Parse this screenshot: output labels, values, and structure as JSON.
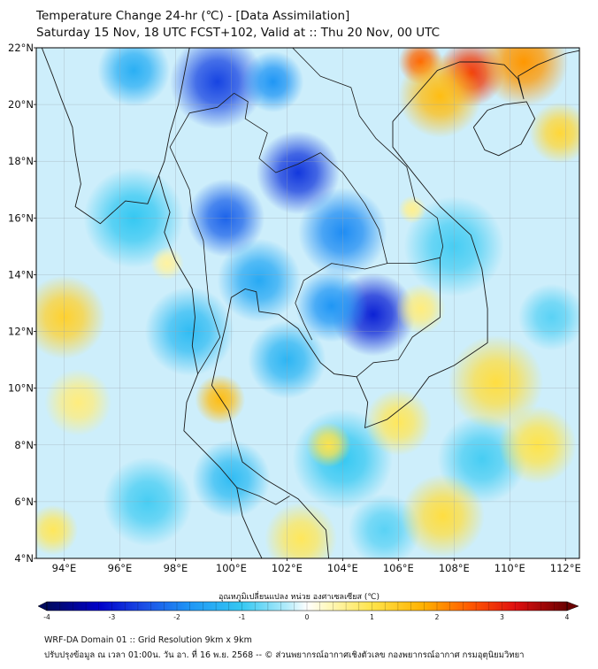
{
  "header": {
    "title": "Temperature Change 24-hr (℃) - [Data Assimilation]",
    "subtitle": "Saturday 15 Nov, 18 UTC FCST+102, Valid at :: Thu 20 Nov, 00 UTC"
  },
  "map": {
    "lat_range": [
      4,
      22
    ],
    "lon_range": [
      93,
      112.5
    ],
    "lat_ticks": [
      "4°N",
      "6°N",
      "8°N",
      "10°N",
      "12°N",
      "14°N",
      "16°N",
      "18°N",
      "20°N",
      "22°N"
    ],
    "lat_tick_values": [
      4,
      6,
      8,
      10,
      12,
      14,
      16,
      18,
      20,
      22
    ],
    "lon_ticks": [
      "94°E",
      "96°E",
      "98°E",
      "100°E",
      "102°E",
      "104°E",
      "106°E",
      "108°E",
      "110°E",
      "112°E"
    ],
    "lon_tick_values": [
      94,
      96,
      98,
      100,
      102,
      104,
      106,
      108,
      110,
      112
    ],
    "background_color": "#cdeefb",
    "anomalies": [
      {
        "lon": 99.5,
        "lat": 20.8,
        "value": -2.6,
        "radius_deg": 1.7
      },
      {
        "lon": 101.5,
        "lat": 20.8,
        "value": -1.8,
        "radius_deg": 1.1
      },
      {
        "lon": 96.5,
        "lat": 21.2,
        "value": -1.4,
        "radius_deg": 1.3
      },
      {
        "lon": 102.4,
        "lat": 17.6,
        "value": -2.7,
        "radius_deg": 1.5
      },
      {
        "lon": 99.8,
        "lat": 16.0,
        "value": -2.3,
        "radius_deg": 1.4
      },
      {
        "lon": 104.0,
        "lat": 15.5,
        "value": -1.9,
        "radius_deg": 1.6
      },
      {
        "lon": 105.1,
        "lat": 12.6,
        "value": -2.9,
        "radius_deg": 1.5
      },
      {
        "lon": 103.6,
        "lat": 12.9,
        "value": -1.8,
        "radius_deg": 1.3
      },
      {
        "lon": 101.0,
        "lat": 13.8,
        "value": -1.5,
        "radius_deg": 1.5
      },
      {
        "lon": 102.0,
        "lat": 11.0,
        "value": -1.3,
        "radius_deg": 1.4
      },
      {
        "lon": 98.5,
        "lat": 12.0,
        "value": -1.2,
        "radius_deg": 1.6
      },
      {
        "lon": 96.5,
        "lat": 16.0,
        "value": -1.0,
        "radius_deg": 1.8
      },
      {
        "lon": 100.0,
        "lat": 6.8,
        "value": -1.2,
        "radius_deg": 1.4
      },
      {
        "lon": 104.0,
        "lat": 7.5,
        "value": -1.0,
        "radius_deg": 1.8
      },
      {
        "lon": 97.0,
        "lat": 6.0,
        "value": -0.9,
        "radius_deg": 1.6
      },
      {
        "lon": 108.0,
        "lat": 15.0,
        "value": -0.9,
        "radius_deg": 1.8
      },
      {
        "lon": 111.5,
        "lat": 12.5,
        "value": -0.8,
        "radius_deg": 1.2
      },
      {
        "lon": 109.0,
        "lat": 7.5,
        "value": -0.9,
        "radius_deg": 1.6
      },
      {
        "lon": 105.5,
        "lat": 5.0,
        "value": -0.8,
        "radius_deg": 1.3
      },
      {
        "lon": 108.6,
        "lat": 21.1,
        "value": 2.8,
        "radius_deg": 1.2
      },
      {
        "lon": 106.8,
        "lat": 21.5,
        "value": 2.4,
        "radius_deg": 0.8
      },
      {
        "lon": 110.5,
        "lat": 21.5,
        "value": 2.0,
        "radius_deg": 1.6
      },
      {
        "lon": 107.5,
        "lat": 20.3,
        "value": 1.6,
        "radius_deg": 1.5
      },
      {
        "lon": 111.8,
        "lat": 19.0,
        "value": 1.2,
        "radius_deg": 1.1
      },
      {
        "lon": 94.0,
        "lat": 12.5,
        "value": 1.3,
        "radius_deg": 1.5
      },
      {
        "lon": 99.6,
        "lat": 9.6,
        "value": 1.6,
        "radius_deg": 0.9
      },
      {
        "lon": 103.5,
        "lat": 8.0,
        "value": 1.0,
        "radius_deg": 0.8
      },
      {
        "lon": 106.0,
        "lat": 8.8,
        "value": 0.9,
        "radius_deg": 1.2
      },
      {
        "lon": 109.5,
        "lat": 10.2,
        "value": 1.1,
        "radius_deg": 1.7
      },
      {
        "lon": 111.0,
        "lat": 8.0,
        "value": 1.0,
        "radius_deg": 1.4
      },
      {
        "lon": 107.6,
        "lat": 5.5,
        "value": 1.1,
        "radius_deg": 1.5
      },
      {
        "lon": 102.5,
        "lat": 4.7,
        "value": 0.9,
        "radius_deg": 1.3
      },
      {
        "lon": 93.6,
        "lat": 5.0,
        "value": 0.9,
        "radius_deg": 0.9
      },
      {
        "lon": 106.8,
        "lat": 12.8,
        "value": 0.7,
        "radius_deg": 0.9
      },
      {
        "lon": 106.5,
        "lat": 16.3,
        "value": 0.6,
        "radius_deg": 0.5
      },
      {
        "lon": 97.7,
        "lat": 14.4,
        "value": 0.5,
        "radius_deg": 0.6
      },
      {
        "lon": 94.5,
        "lat": 9.5,
        "value": 0.7,
        "radius_deg": 1.2
      }
    ],
    "coastlines": [
      {
        "name": "indochina-coast",
        "points": [
          [
            98.5,
            22
          ],
          [
            98.3,
            21
          ],
          [
            98.1,
            20
          ],
          [
            97.8,
            19
          ],
          [
            97.6,
            18
          ],
          [
            97.4,
            17.5
          ],
          [
            97.6,
            16.8
          ],
          [
            97.8,
            16.2
          ],
          [
            97.6,
            15.5
          ],
          [
            98.0,
            14.5
          ],
          [
            98.6,
            13.5
          ],
          [
            98.7,
            12.5
          ],
          [
            98.6,
            11.5
          ],
          [
            98.8,
            10.5
          ],
          [
            98.4,
            9.5
          ],
          [
            98.3,
            8.5
          ],
          [
            98.8,
            8.0
          ],
          [
            99.6,
            7.2
          ],
          [
            100.2,
            6.5
          ],
          [
            100.4,
            5.5
          ],
          [
            100.8,
            4.6
          ],
          [
            101.1,
            4.0
          ]
        ]
      },
      {
        "name": "gulf-west-coast",
        "points": [
          [
            103.5,
            4.0
          ],
          [
            103.4,
            5.0
          ],
          [
            102.4,
            6.1
          ],
          [
            101.2,
            6.8
          ],
          [
            100.4,
            7.4
          ],
          [
            100.1,
            8.4
          ],
          [
            99.9,
            9.2
          ],
          [
            99.3,
            10.1
          ],
          [
            99.5,
            11.0
          ],
          [
            99.8,
            12.2
          ],
          [
            100.0,
            13.2
          ],
          [
            100.5,
            13.5
          ],
          [
            100.9,
            13.4
          ],
          [
            101.0,
            12.7
          ],
          [
            101.7,
            12.6
          ],
          [
            102.4,
            12.1
          ],
          [
            102.8,
            11.5
          ],
          [
            103.2,
            10.9
          ],
          [
            103.7,
            10.5
          ],
          [
            104.5,
            10.4
          ],
          [
            104.9,
            9.5
          ],
          [
            104.8,
            8.6
          ],
          [
            105.6,
            8.9
          ],
          [
            106.5,
            9.6
          ],
          [
            107.1,
            10.4
          ],
          [
            108.0,
            10.8
          ],
          [
            109.2,
            11.6
          ],
          [
            109.2,
            12.8
          ],
          [
            109.0,
            14.2
          ],
          [
            108.6,
            15.4
          ],
          [
            107.5,
            16.4
          ],
          [
            106.6,
            17.5
          ],
          [
            105.8,
            18.5
          ],
          [
            105.8,
            19.4
          ],
          [
            106.6,
            20.3
          ],
          [
            107.4,
            21.2
          ],
          [
            108.2,
            21.5
          ],
          [
            109.0,
            21.5
          ],
          [
            109.8,
            21.4
          ],
          [
            110.3,
            20.9
          ],
          [
            110.5,
            20.2
          ],
          [
            110.3,
            21.0
          ],
          [
            111.0,
            21.4
          ],
          [
            112.0,
            21.8
          ],
          [
            112.5,
            21.9
          ]
        ]
      },
      {
        "name": "hainan",
        "points": [
          [
            108.7,
            19.2
          ],
          [
            109.1,
            18.4
          ],
          [
            109.6,
            18.2
          ],
          [
            110.4,
            18.6
          ],
          [
            110.9,
            19.5
          ],
          [
            110.6,
            20.1
          ],
          [
            109.8,
            20.0
          ],
          [
            109.2,
            19.8
          ],
          [
            108.7,
            19.2
          ]
        ]
      },
      {
        "name": "myanmar-west-coast",
        "points": [
          [
            93.2,
            22.0
          ],
          [
            93.6,
            21.0
          ],
          [
            93.9,
            20.2
          ],
          [
            94.3,
            19.2
          ],
          [
            94.4,
            18.3
          ],
          [
            94.6,
            17.2
          ],
          [
            94.4,
            16.4
          ],
          [
            95.3,
            15.8
          ],
          [
            96.2,
            16.6
          ],
          [
            97.0,
            16.5
          ],
          [
            97.4,
            17.5
          ]
        ]
      }
    ],
    "borders": [
      {
        "name": "myanmar-thai-border",
        "points": [
          [
            100.1,
            20.4
          ],
          [
            99.5,
            19.9
          ],
          [
            98.5,
            19.7
          ],
          [
            97.8,
            18.5
          ],
          [
            98.5,
            17.0
          ],
          [
            98.6,
            16.2
          ],
          [
            99.0,
            15.2
          ],
          [
            99.1,
            14.0
          ],
          [
            99.2,
            13.0
          ],
          [
            99.6,
            11.8
          ],
          [
            98.8,
            10.5
          ]
        ]
      },
      {
        "name": "thai-laos-border",
        "points": [
          [
            100.1,
            20.4
          ],
          [
            100.6,
            20.1
          ],
          [
            100.5,
            19.5
          ],
          [
            101.3,
            19.0
          ],
          [
            101.0,
            18.1
          ],
          [
            101.6,
            17.6
          ],
          [
            102.4,
            17.9
          ],
          [
            103.2,
            18.3
          ],
          [
            104.0,
            17.6
          ],
          [
            104.8,
            16.5
          ],
          [
            105.3,
            15.6
          ],
          [
            105.6,
            14.4
          ],
          [
            104.8,
            14.2
          ],
          [
            103.6,
            14.4
          ],
          [
            102.6,
            13.8
          ],
          [
            102.3,
            13.0
          ],
          [
            102.6,
            12.3
          ],
          [
            102.9,
            11.7
          ]
        ]
      },
      {
        "name": "laos-vietnam-border",
        "points": [
          [
            102.2,
            22.0
          ],
          [
            103.2,
            21.0
          ],
          [
            104.3,
            20.6
          ],
          [
            104.6,
            19.6
          ],
          [
            105.2,
            18.8
          ],
          [
            106.3,
            17.8
          ],
          [
            106.6,
            16.6
          ],
          [
            107.4,
            16.0
          ],
          [
            107.6,
            15.0
          ],
          [
            107.5,
            14.6
          ],
          [
            107.5,
            13.5
          ],
          [
            107.5,
            12.5
          ],
          [
            106.5,
            11.8
          ],
          [
            106.0,
            11.0
          ],
          [
            105.1,
            10.9
          ],
          [
            104.5,
            10.4
          ]
        ]
      },
      {
        "name": "cambodia-laos-border",
        "points": [
          [
            105.6,
            14.4
          ],
          [
            106.6,
            14.4
          ],
          [
            107.5,
            14.6
          ]
        ]
      },
      {
        "name": "thai-malaysia-border",
        "points": [
          [
            100.2,
            6.5
          ],
          [
            101.0,
            6.2
          ],
          [
            101.6,
            5.9
          ],
          [
            102.1,
            6.2
          ]
        ]
      }
    ]
  },
  "colorbar": {
    "label": "อุณหภูมิเปลี่ยนแปลง หน่วย องศาเซลเซียส (℃)",
    "min": -4,
    "max": 4,
    "ticks": [
      "-4",
      "-3",
      "-2",
      "-1",
      "0",
      "1",
      "2",
      "3",
      "4"
    ],
    "tick_values": [
      -4,
      -3,
      -2,
      -1,
      0,
      1,
      2,
      3,
      4
    ],
    "color_stops": [
      {
        "v": -4.0,
        "c": "#000a5e"
      },
      {
        "v": -3.2,
        "c": "#0000c8"
      },
      {
        "v": -2.5,
        "c": "#1b4fe6"
      },
      {
        "v": -1.8,
        "c": "#1f96f5"
      },
      {
        "v": -1.0,
        "c": "#35c8f2"
      },
      {
        "v": -0.3,
        "c": "#b5ecfb"
      },
      {
        "v": 0.0,
        "c": "#ffffff"
      },
      {
        "v": 0.3,
        "c": "#fff9c2"
      },
      {
        "v": 1.0,
        "c": "#ffe44a"
      },
      {
        "v": 1.8,
        "c": "#ffb000"
      },
      {
        "v": 2.5,
        "c": "#ff5a00"
      },
      {
        "v": 3.2,
        "c": "#e01010"
      },
      {
        "v": 4.0,
        "c": "#6a0000"
      }
    ]
  },
  "footer": {
    "line1": "WRF-DA Domain 01 :: Grid Resolution 9km x 9km",
    "line2": "ปรับปรุงข้อมูล ณ เวลา 01:00น. วัน อา. ที่ 16 พ.ย. 2568 -- © ส่วนพยากรณ์อากาศเชิงตัวเลข กองพยากรณ์อากาศ กรมอุตุนิยมวิทยา"
  }
}
